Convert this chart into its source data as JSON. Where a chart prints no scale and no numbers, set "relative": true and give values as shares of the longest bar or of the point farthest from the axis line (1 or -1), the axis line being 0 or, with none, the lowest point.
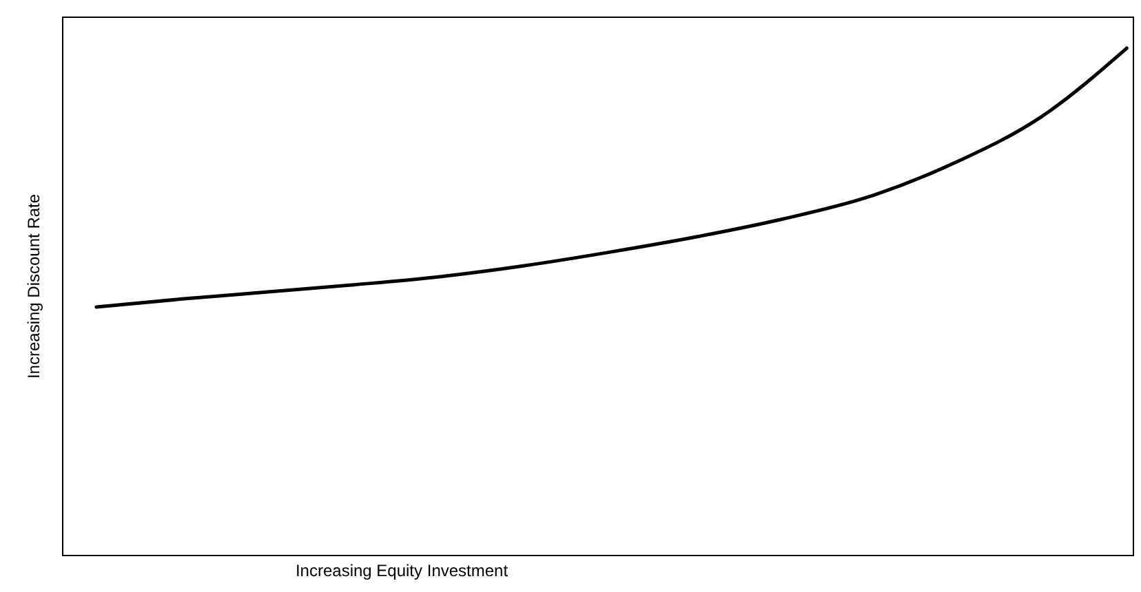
{
  "chart_data": {
    "type": "line",
    "relative": true,
    "xlabel": "Increasing Equity Investment",
    "ylabel": "Increasing Discount Rate",
    "categories": [
      null,
      null,
      null,
      null,
      null,
      null,
      null,
      null,
      null,
      null,
      null,
      null,
      null
    ],
    "series": [
      {
        "color": "#000000",
        "values": [
          0.489,
          0.505,
          0.519,
          0.533,
          0.549,
          0.571,
          0.598,
          0.628,
          0.663,
          0.707,
          0.774,
          0.864,
          1
        ]
      }
    ],
    "grid": false,
    "marker": "none",
    "line_style": "solid",
    "tick_labels": false
  }
}
